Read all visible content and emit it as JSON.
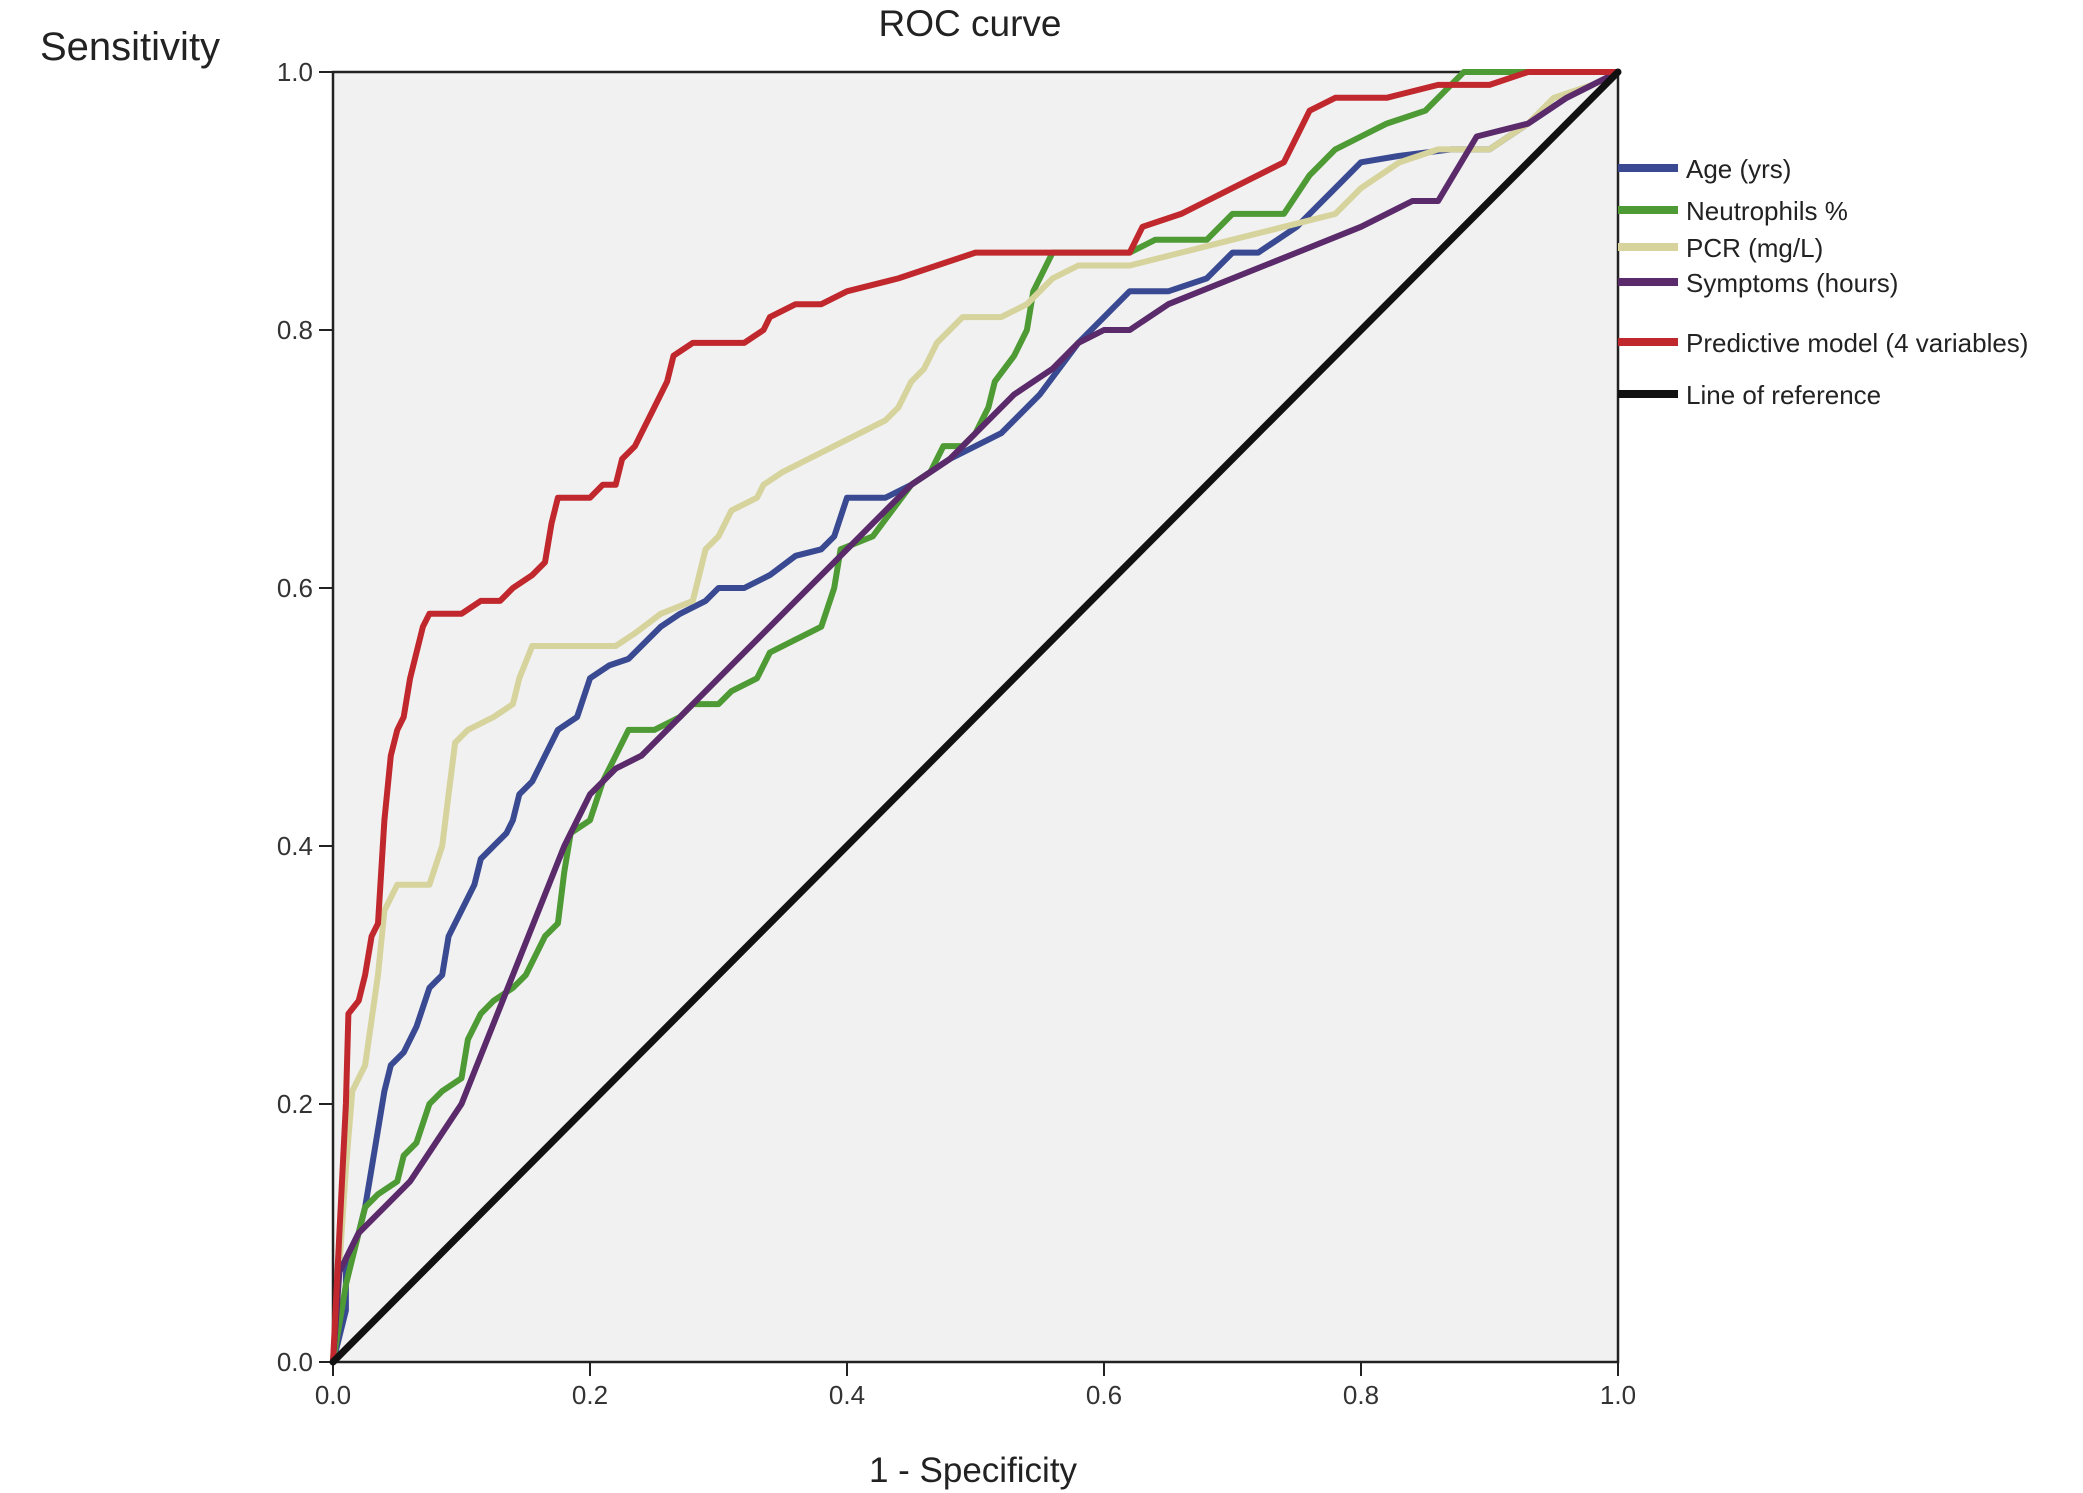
{
  "chart_data": {
    "type": "line",
    "title": "ROC curve",
    "xlabel": "1 - Specificity",
    "ylabel": "Sensitivity",
    "xlim": [
      0.0,
      1.0
    ],
    "ylim": [
      0.0,
      1.0
    ],
    "x_ticks": [
      "0.0",
      "0.2",
      "0.4",
      "0.6",
      "0.8",
      "1.0"
    ],
    "y_ticks": [
      "0.0",
      "0.2",
      "0.4",
      "0.6",
      "0.8",
      "1.0"
    ],
    "grid": false,
    "legend_position": "right",
    "plot_background": "#f1f1f1",
    "series": [
      {
        "name": "Age (yrs)",
        "color": "#3a4a92",
        "points": [
          [
            0,
            0
          ],
          [
            0.01,
            0.04
          ],
          [
            0.01,
            0.08
          ],
          [
            0.02,
            0.1
          ],
          [
            0.025,
            0.12
          ],
          [
            0.03,
            0.15
          ],
          [
            0.035,
            0.18
          ],
          [
            0.04,
            0.21
          ],
          [
            0.045,
            0.23
          ],
          [
            0.055,
            0.24
          ],
          [
            0.065,
            0.26
          ],
          [
            0.075,
            0.29
          ],
          [
            0.085,
            0.3
          ],
          [
            0.09,
            0.33
          ],
          [
            0.1,
            0.35
          ],
          [
            0.11,
            0.37
          ],
          [
            0.115,
            0.39
          ],
          [
            0.125,
            0.4
          ],
          [
            0.135,
            0.41
          ],
          [
            0.14,
            0.42
          ],
          [
            0.145,
            0.44
          ],
          [
            0.155,
            0.45
          ],
          [
            0.165,
            0.47
          ],
          [
            0.175,
            0.49
          ],
          [
            0.19,
            0.5
          ],
          [
            0.2,
            0.53
          ],
          [
            0.215,
            0.54
          ],
          [
            0.23,
            0.545
          ],
          [
            0.255,
            0.57
          ],
          [
            0.27,
            0.58
          ],
          [
            0.29,
            0.59
          ],
          [
            0.3,
            0.6
          ],
          [
            0.32,
            0.6
          ],
          [
            0.34,
            0.61
          ],
          [
            0.36,
            0.625
          ],
          [
            0.38,
            0.63
          ],
          [
            0.39,
            0.64
          ],
          [
            0.4,
            0.67
          ],
          [
            0.43,
            0.67
          ],
          [
            0.45,
            0.68
          ],
          [
            0.48,
            0.7
          ],
          [
            0.52,
            0.72
          ],
          [
            0.55,
            0.75
          ],
          [
            0.58,
            0.79
          ],
          [
            0.6,
            0.81
          ],
          [
            0.62,
            0.83
          ],
          [
            0.65,
            0.83
          ],
          [
            0.68,
            0.84
          ],
          [
            0.7,
            0.86
          ],
          [
            0.72,
            0.86
          ],
          [
            0.75,
            0.88
          ],
          [
            0.78,
            0.91
          ],
          [
            0.8,
            0.93
          ],
          [
            0.83,
            0.935
          ],
          [
            0.87,
            0.94
          ],
          [
            0.9,
            0.94
          ],
          [
            0.93,
            0.96
          ],
          [
            0.96,
            0.98
          ],
          [
            1.0,
            1.0
          ]
        ]
      },
      {
        "name": "Neutrophils %",
        "color": "#4e9a34",
        "points": [
          [
            0,
            0
          ],
          [
            0.01,
            0.06
          ],
          [
            0.015,
            0.08
          ],
          [
            0.02,
            0.1
          ],
          [
            0.025,
            0.12
          ],
          [
            0.035,
            0.13
          ],
          [
            0.05,
            0.14
          ],
          [
            0.055,
            0.16
          ],
          [
            0.065,
            0.17
          ],
          [
            0.075,
            0.2
          ],
          [
            0.085,
            0.21
          ],
          [
            0.1,
            0.22
          ],
          [
            0.105,
            0.25
          ],
          [
            0.115,
            0.27
          ],
          [
            0.125,
            0.28
          ],
          [
            0.14,
            0.29
          ],
          [
            0.15,
            0.3
          ],
          [
            0.165,
            0.33
          ],
          [
            0.175,
            0.34
          ],
          [
            0.18,
            0.38
          ],
          [
            0.185,
            0.41
          ],
          [
            0.2,
            0.42
          ],
          [
            0.21,
            0.45
          ],
          [
            0.22,
            0.47
          ],
          [
            0.23,
            0.49
          ],
          [
            0.25,
            0.49
          ],
          [
            0.27,
            0.5
          ],
          [
            0.28,
            0.51
          ],
          [
            0.3,
            0.51
          ],
          [
            0.31,
            0.52
          ],
          [
            0.33,
            0.53
          ],
          [
            0.34,
            0.55
          ],
          [
            0.36,
            0.56
          ],
          [
            0.38,
            0.57
          ],
          [
            0.39,
            0.6
          ],
          [
            0.395,
            0.63
          ],
          [
            0.42,
            0.64
          ],
          [
            0.435,
            0.66
          ],
          [
            0.45,
            0.68
          ],
          [
            0.465,
            0.69
          ],
          [
            0.475,
            0.71
          ],
          [
            0.49,
            0.71
          ],
          [
            0.5,
            0.72
          ],
          [
            0.51,
            0.74
          ],
          [
            0.515,
            0.76
          ],
          [
            0.53,
            0.78
          ],
          [
            0.54,
            0.8
          ],
          [
            0.545,
            0.83
          ],
          [
            0.56,
            0.86
          ],
          [
            0.62,
            0.86
          ],
          [
            0.64,
            0.87
          ],
          [
            0.68,
            0.87
          ],
          [
            0.7,
            0.89
          ],
          [
            0.74,
            0.89
          ],
          [
            0.76,
            0.92
          ],
          [
            0.78,
            0.94
          ],
          [
            0.8,
            0.95
          ],
          [
            0.82,
            0.96
          ],
          [
            0.85,
            0.97
          ],
          [
            0.88,
            1.0
          ],
          [
            1.0,
            1.0
          ]
        ]
      },
      {
        "name": "PCR (mg/L)",
        "color": "#d6d39c",
        "points": [
          [
            0,
            0
          ],
          [
            0.01,
            0.15
          ],
          [
            0.015,
            0.21
          ],
          [
            0.025,
            0.23
          ],
          [
            0.035,
            0.3
          ],
          [
            0.04,
            0.35
          ],
          [
            0.05,
            0.37
          ],
          [
            0.075,
            0.37
          ],
          [
            0.085,
            0.4
          ],
          [
            0.09,
            0.44
          ],
          [
            0.095,
            0.48
          ],
          [
            0.105,
            0.49
          ],
          [
            0.125,
            0.5
          ],
          [
            0.14,
            0.51
          ],
          [
            0.145,
            0.53
          ],
          [
            0.155,
            0.555
          ],
          [
            0.2,
            0.555
          ],
          [
            0.22,
            0.555
          ],
          [
            0.235,
            0.565
          ],
          [
            0.255,
            0.58
          ],
          [
            0.28,
            0.59
          ],
          [
            0.285,
            0.61
          ],
          [
            0.29,
            0.63
          ],
          [
            0.3,
            0.64
          ],
          [
            0.31,
            0.66
          ],
          [
            0.33,
            0.67
          ],
          [
            0.335,
            0.68
          ],
          [
            0.35,
            0.69
          ],
          [
            0.37,
            0.7
          ],
          [
            0.39,
            0.71
          ],
          [
            0.41,
            0.72
          ],
          [
            0.43,
            0.73
          ],
          [
            0.44,
            0.74
          ],
          [
            0.45,
            0.76
          ],
          [
            0.46,
            0.77
          ],
          [
            0.47,
            0.79
          ],
          [
            0.48,
            0.8
          ],
          [
            0.49,
            0.81
          ],
          [
            0.52,
            0.81
          ],
          [
            0.54,
            0.82
          ],
          [
            0.56,
            0.84
          ],
          [
            0.58,
            0.85
          ],
          [
            0.62,
            0.85
          ],
          [
            0.66,
            0.86
          ],
          [
            0.7,
            0.87
          ],
          [
            0.74,
            0.88
          ],
          [
            0.78,
            0.89
          ],
          [
            0.8,
            0.91
          ],
          [
            0.83,
            0.93
          ],
          [
            0.86,
            0.94
          ],
          [
            0.9,
            0.94
          ],
          [
            0.93,
            0.96
          ],
          [
            0.95,
            0.98
          ],
          [
            0.98,
            0.99
          ],
          [
            1.0,
            1.0
          ]
        ]
      },
      {
        "name": "Symptoms (hours)",
        "color": "#5a2a6a",
        "points": [
          [
            0,
            0
          ],
          [
            0.005,
            0.07
          ],
          [
            0.02,
            0.1
          ],
          [
            0.04,
            0.12
          ],
          [
            0.06,
            0.14
          ],
          [
            0.08,
            0.17
          ],
          [
            0.1,
            0.2
          ],
          [
            0.12,
            0.25
          ],
          [
            0.14,
            0.3
          ],
          [
            0.16,
            0.35
          ],
          [
            0.18,
            0.4
          ],
          [
            0.2,
            0.44
          ],
          [
            0.22,
            0.46
          ],
          [
            0.24,
            0.47
          ],
          [
            0.27,
            0.5
          ],
          [
            0.3,
            0.53
          ],
          [
            0.33,
            0.56
          ],
          [
            0.36,
            0.59
          ],
          [
            0.39,
            0.62
          ],
          [
            0.42,
            0.65
          ],
          [
            0.45,
            0.68
          ],
          [
            0.48,
            0.7
          ],
          [
            0.5,
            0.72
          ],
          [
            0.53,
            0.75
          ],
          [
            0.56,
            0.77
          ],
          [
            0.58,
            0.79
          ],
          [
            0.6,
            0.8
          ],
          [
            0.62,
            0.8
          ],
          [
            0.65,
            0.82
          ],
          [
            0.7,
            0.84
          ],
          [
            0.75,
            0.86
          ],
          [
            0.8,
            0.88
          ],
          [
            0.84,
            0.9
          ],
          [
            0.86,
            0.9
          ],
          [
            0.89,
            0.95
          ],
          [
            0.91,
            0.955
          ],
          [
            0.93,
            0.96
          ],
          [
            0.96,
            0.98
          ],
          [
            0.98,
            0.99
          ],
          [
            1.0,
            1.0
          ]
        ]
      },
      {
        "name": "Predictive model (4 variables)",
        "color": "#c0282d",
        "points": [
          [
            0,
            0
          ],
          [
            0.005,
            0.1
          ],
          [
            0.01,
            0.2
          ],
          [
            0.012,
            0.27
          ],
          [
            0.02,
            0.28
          ],
          [
            0.025,
            0.3
          ],
          [
            0.03,
            0.33
          ],
          [
            0.035,
            0.34
          ],
          [
            0.04,
            0.42
          ],
          [
            0.045,
            0.47
          ],
          [
            0.05,
            0.49
          ],
          [
            0.055,
            0.5
          ],
          [
            0.06,
            0.53
          ],
          [
            0.065,
            0.55
          ],
          [
            0.07,
            0.57
          ],
          [
            0.075,
            0.58
          ],
          [
            0.1,
            0.58
          ],
          [
            0.115,
            0.59
          ],
          [
            0.13,
            0.59
          ],
          [
            0.14,
            0.6
          ],
          [
            0.155,
            0.61
          ],
          [
            0.165,
            0.62
          ],
          [
            0.17,
            0.65
          ],
          [
            0.175,
            0.67
          ],
          [
            0.2,
            0.67
          ],
          [
            0.21,
            0.68
          ],
          [
            0.22,
            0.68
          ],
          [
            0.225,
            0.7
          ],
          [
            0.235,
            0.71
          ],
          [
            0.24,
            0.72
          ],
          [
            0.25,
            0.74
          ],
          [
            0.26,
            0.76
          ],
          [
            0.265,
            0.78
          ],
          [
            0.28,
            0.79
          ],
          [
            0.32,
            0.79
          ],
          [
            0.335,
            0.8
          ],
          [
            0.34,
            0.81
          ],
          [
            0.36,
            0.82
          ],
          [
            0.38,
            0.82
          ],
          [
            0.4,
            0.83
          ],
          [
            0.44,
            0.84
          ],
          [
            0.47,
            0.85
          ],
          [
            0.5,
            0.86
          ],
          [
            0.56,
            0.86
          ],
          [
            0.62,
            0.86
          ],
          [
            0.63,
            0.88
          ],
          [
            0.66,
            0.89
          ],
          [
            0.68,
            0.9
          ],
          [
            0.7,
            0.91
          ],
          [
            0.72,
            0.92
          ],
          [
            0.74,
            0.93
          ],
          [
            0.75,
            0.95
          ],
          [
            0.76,
            0.97
          ],
          [
            0.78,
            0.98
          ],
          [
            0.82,
            0.98
          ],
          [
            0.86,
            0.99
          ],
          [
            0.9,
            0.99
          ],
          [
            0.93,
            1.0
          ],
          [
            1.0,
            1.0
          ]
        ]
      },
      {
        "name": "Line of reference",
        "color": "#111111",
        "points": [
          [
            0,
            0
          ],
          [
            1,
            1
          ]
        ]
      }
    ]
  }
}
